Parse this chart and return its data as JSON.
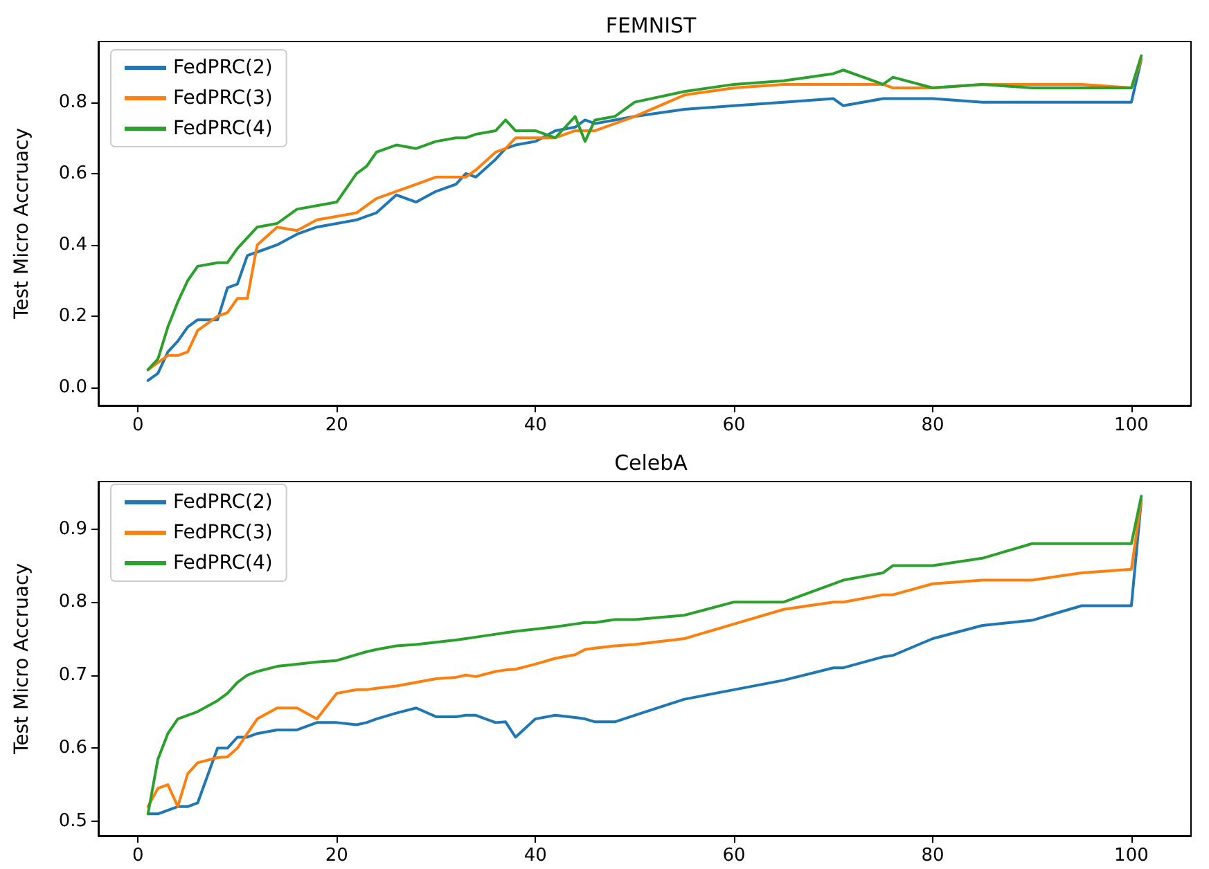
{
  "chart_data": [
    {
      "type": "line",
      "title": "FEMNIST",
      "ylabel": "Test Micro Accruacy",
      "legend": "top left",
      "grid": false,
      "marker": "none",
      "line_style": "solid",
      "x": [
        1,
        2,
        3,
        4,
        5,
        6,
        8,
        9,
        10,
        11,
        12,
        14,
        16,
        18,
        20,
        22,
        23,
        24,
        26,
        28,
        30,
        32,
        33,
        34,
        36,
        37,
        38,
        40,
        42,
        44,
        45,
        46,
        48,
        50,
        55,
        60,
        65,
        70,
        71,
        75,
        76,
        80,
        85,
        90,
        95,
        100,
        101
      ],
      "xlim": [
        -4,
        106
      ],
      "xticks": [
        0,
        20,
        40,
        60,
        80,
        100
      ],
      "ylim": [
        -0.05,
        0.97
      ],
      "yticks": [
        {
          "value": 0,
          "label": "0.0"
        },
        0.2,
        0.4,
        0.6,
        0.8
      ],
      "series": [
        {
          "name": "FedPRC(2)",
          "color": "#1f77b4",
          "values": [
            0.02,
            0.04,
            0.1,
            0.13,
            0.17,
            0.19,
            0.19,
            0.28,
            0.29,
            0.37,
            0.38,
            0.4,
            0.43,
            0.45,
            0.46,
            0.47,
            0.48,
            0.49,
            0.54,
            0.52,
            0.55,
            0.57,
            0.6,
            0.59,
            0.64,
            0.67,
            0.68,
            0.69,
            0.72,
            0.73,
            0.75,
            0.74,
            0.75,
            0.76,
            0.78,
            0.79,
            0.8,
            0.81,
            0.79,
            0.81,
            0.81,
            0.81,
            0.8,
            0.8,
            0.8,
            0.8,
            0.92
          ]
        },
        {
          "name": "FedPRC(3)",
          "color": "#ff7f0e",
          "values": [
            0.05,
            0.07,
            0.09,
            0.09,
            0.1,
            0.16,
            0.2,
            0.21,
            0.25,
            0.25,
            0.4,
            0.45,
            0.44,
            0.47,
            0.48,
            0.49,
            0.51,
            0.53,
            0.55,
            0.57,
            0.59,
            0.59,
            0.59,
            0.61,
            0.66,
            0.67,
            0.7,
            0.7,
            0.7,
            0.72,
            0.72,
            0.72,
            0.74,
            0.76,
            0.82,
            0.84,
            0.85,
            0.85,
            0.85,
            0.85,
            0.84,
            0.84,
            0.85,
            0.85,
            0.85,
            0.84,
            0.92
          ]
        },
        {
          "name": "FedPRC(4)",
          "color": "#2ca02c",
          "values": [
            0.05,
            0.08,
            0.17,
            0.24,
            0.3,
            0.34,
            0.35,
            0.35,
            0.39,
            0.42,
            0.45,
            0.46,
            0.5,
            0.51,
            0.52,
            0.6,
            0.62,
            0.66,
            0.68,
            0.67,
            0.69,
            0.7,
            0.7,
            0.71,
            0.72,
            0.75,
            0.72,
            0.72,
            0.7,
            0.76,
            0.69,
            0.75,
            0.76,
            0.8,
            0.83,
            0.85,
            0.86,
            0.88,
            0.89,
            0.85,
            0.87,
            0.84,
            0.85,
            0.84,
            0.84,
            0.84,
            0.93
          ]
        }
      ]
    },
    {
      "type": "line",
      "title": "CelebA",
      "ylabel": "Test Micro Accruacy",
      "legend": "top left",
      "grid": false,
      "marker": "none",
      "line_style": "solid",
      "x": [
        1,
        2,
        3,
        4,
        5,
        6,
        8,
        9,
        10,
        11,
        12,
        14,
        16,
        18,
        20,
        22,
        23,
        24,
        26,
        28,
        30,
        32,
        33,
        34,
        36,
        37,
        38,
        40,
        42,
        44,
        45,
        46,
        48,
        50,
        55,
        60,
        65,
        70,
        71,
        75,
        76,
        80,
        85,
        90,
        95,
        100,
        101
      ],
      "xlim": [
        -4,
        106
      ],
      "xticks": [
        0,
        20,
        40,
        60,
        80,
        100
      ],
      "ylim": [
        0.48,
        0.965
      ],
      "yticks": [
        0.5,
        0.6,
        0.7,
        0.8,
        0.9
      ],
      "series": [
        {
          "name": "FedPRC(2)",
          "color": "#1f77b4",
          "values": [
            0.51,
            0.51,
            0.515,
            0.52,
            0.52,
            0.525,
            0.6,
            0.6,
            0.615,
            0.615,
            0.62,
            0.625,
            0.625,
            0.635,
            0.635,
            0.632,
            0.635,
            0.64,
            0.648,
            0.655,
            0.643,
            0.643,
            0.645,
            0.645,
            0.635,
            0.636,
            0.615,
            0.64,
            0.645,
            0.642,
            0.64,
            0.636,
            0.636,
            0.645,
            0.667,
            0.68,
            0.693,
            0.71,
            0.71,
            0.725,
            0.727,
            0.75,
            0.768,
            0.775,
            0.795,
            0.795,
            0.94
          ]
        },
        {
          "name": "FedPRC(3)",
          "color": "#ff7f0e",
          "values": [
            0.52,
            0.545,
            0.55,
            0.52,
            0.565,
            0.58,
            0.587,
            0.588,
            0.6,
            0.62,
            0.64,
            0.655,
            0.655,
            0.64,
            0.675,
            0.68,
            0.68,
            0.682,
            0.685,
            0.69,
            0.695,
            0.697,
            0.7,
            0.698,
            0.705,
            0.707,
            0.708,
            0.715,
            0.723,
            0.728,
            0.735,
            0.737,
            0.74,
            0.742,
            0.75,
            0.77,
            0.79,
            0.8,
            0.8,
            0.81,
            0.81,
            0.825,
            0.83,
            0.83,
            0.84,
            0.845,
            0.94
          ]
        },
        {
          "name": "FedPRC(4)",
          "color": "#2ca02c",
          "values": [
            0.51,
            0.585,
            0.62,
            0.64,
            0.645,
            0.65,
            0.665,
            0.675,
            0.69,
            0.7,
            0.705,
            0.712,
            0.715,
            0.718,
            0.72,
            0.728,
            0.732,
            0.735,
            0.74,
            0.742,
            0.745,
            0.748,
            0.75,
            0.752,
            0.756,
            0.758,
            0.76,
            0.763,
            0.766,
            0.77,
            0.772,
            0.772,
            0.776,
            0.776,
            0.782,
            0.8,
            0.8,
            0.825,
            0.83,
            0.84,
            0.85,
            0.85,
            0.86,
            0.88,
            0.88,
            0.88,
            0.945
          ]
        }
      ]
    }
  ]
}
